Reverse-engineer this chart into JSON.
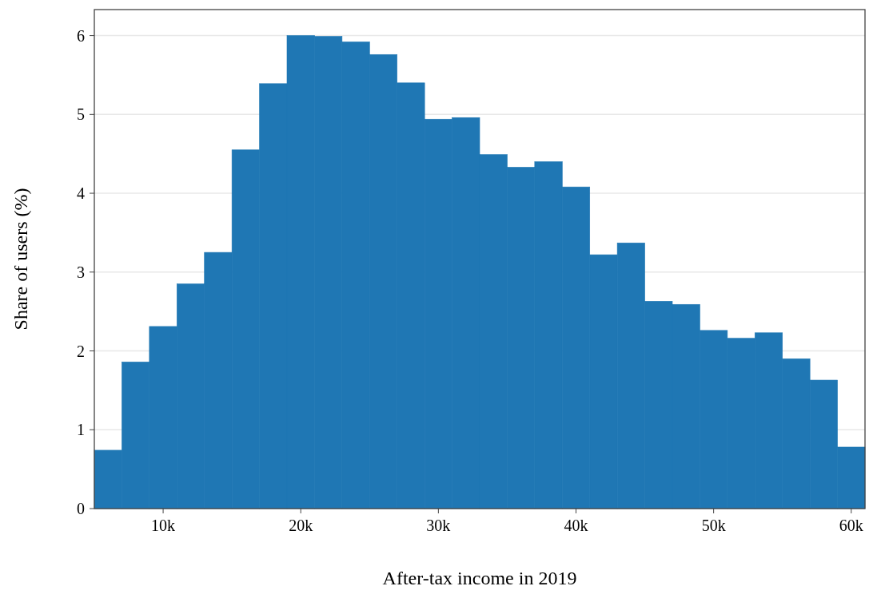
{
  "chart_data": {
    "type": "histogram",
    "xlabel": "After-tax income in 2019",
    "ylabel": "Share of users (%)",
    "color": "#1f77b4",
    "bins": [
      5000,
      7000,
      9000,
      11000,
      13000,
      15000,
      17000,
      19000,
      21000,
      23000,
      25000,
      27000,
      29000,
      31000,
      33000,
      35000,
      37000,
      39000,
      41000,
      43000,
      45000,
      47000,
      49000,
      51000,
      53000,
      55000,
      57000,
      59000,
      61000
    ],
    "values": [
      0.74,
      1.86,
      2.31,
      2.85,
      3.25,
      4.55,
      5.39,
      6.0,
      5.99,
      5.92,
      5.76,
      5.4,
      4.94,
      4.96,
      4.49,
      4.33,
      4.4,
      4.08,
      3.22,
      3.37,
      2.63,
      2.59,
      2.26,
      2.16,
      2.23,
      1.9,
      1.63,
      0.78
    ],
    "xlim": [
      5000,
      61000
    ],
    "xticks": [
      {
        "value": 10000,
        "label": "10k"
      },
      {
        "value": 20000,
        "label": "20k"
      },
      {
        "value": 30000,
        "label": "30k"
      },
      {
        "value": 40000,
        "label": "40k"
      },
      {
        "value": 50000,
        "label": "50k"
      },
      {
        "value": 60000,
        "label": "60k"
      }
    ],
    "ylim": [
      0,
      6.33
    ],
    "yticks": [
      0,
      1,
      2,
      3,
      4,
      5,
      6
    ],
    "grid": "y"
  }
}
